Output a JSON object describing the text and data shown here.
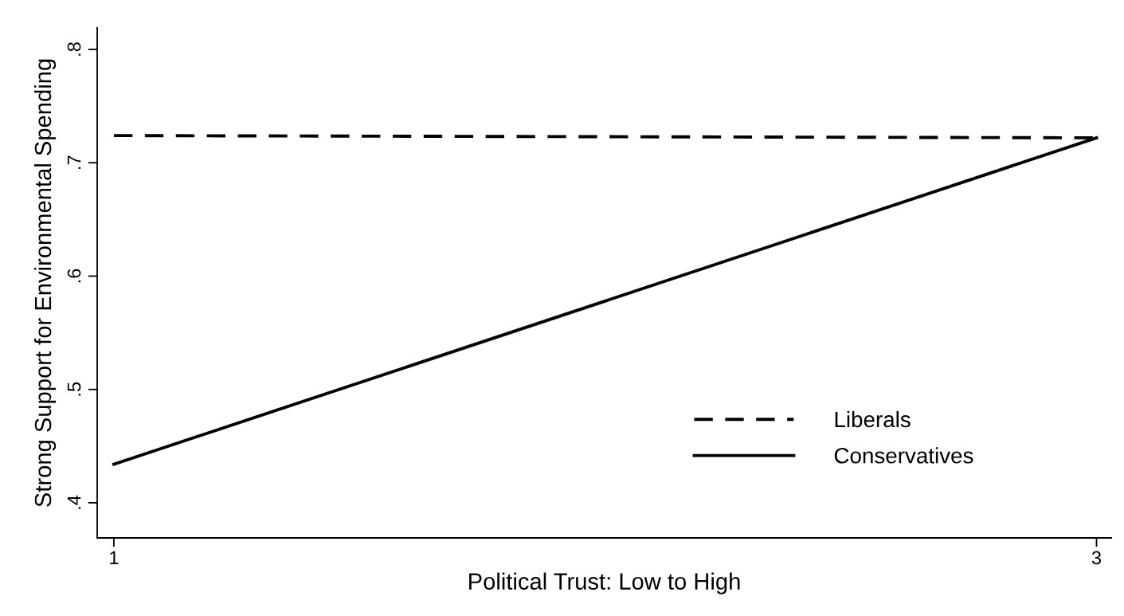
{
  "chart_data": {
    "type": "line",
    "xlabel": "Political Trust: Low to High",
    "ylabel": "Strong Support for Environmental Spending",
    "x": [
      1,
      3
    ],
    "series": [
      {
        "name": "Liberals",
        "color": "#000000",
        "values": [
          0.724,
          0.722
        ],
        "line_style": "dashed"
      },
      {
        "name": "Conservatives",
        "color": "#000000",
        "values": [
          0.434,
          0.722
        ],
        "line_style": "solid"
      }
    ],
    "xlim": [
      0.966,
      3.03
    ],
    "ylim": [
      0.369,
      0.819
    ],
    "xticks": [
      1,
      3
    ],
    "yticks": [
      {
        "value": 0.4,
        "label": ".4"
      },
      {
        "value": 0.5,
        "label": ".5"
      },
      {
        "value": 0.6,
        "label": ".6"
      },
      {
        "value": 0.7,
        "label": ".7"
      },
      {
        "value": 0.8,
        "label": ".8"
      }
    ],
    "grid": false,
    "legend": "bottom right",
    "marker": "none"
  }
}
